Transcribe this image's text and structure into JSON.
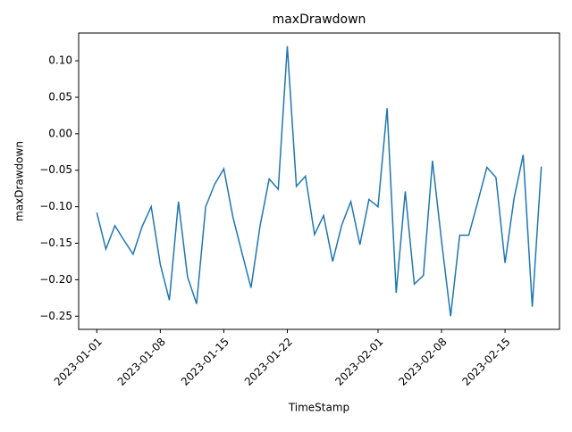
{
  "chart_data": {
    "type": "line",
    "title": "maxDrawdown",
    "x_label": "TimeStamp",
    "y_label": "maxDrawdown",
    "x": [
      "2023-01-01",
      "2023-01-02",
      "2023-01-03",
      "2023-01-04",
      "2023-01-05",
      "2023-01-06",
      "2023-01-07",
      "2023-01-08",
      "2023-01-09",
      "2023-01-10",
      "2023-01-11",
      "2023-01-12",
      "2023-01-13",
      "2023-01-14",
      "2023-01-15",
      "2023-01-16",
      "2023-01-17",
      "2023-01-18",
      "2023-01-19",
      "2023-01-20",
      "2023-01-21",
      "2023-01-22",
      "2023-01-23",
      "2023-01-24",
      "2023-01-25",
      "2023-01-26",
      "2023-01-27",
      "2023-01-28",
      "2023-01-29",
      "2023-01-30",
      "2023-01-31",
      "2023-02-01",
      "2023-02-02",
      "2023-02-03",
      "2023-02-04",
      "2023-02-05",
      "2023-02-06",
      "2023-02-07",
      "2023-02-08",
      "2023-02-09",
      "2023-02-10",
      "2023-02-11",
      "2023-02-12",
      "2023-02-13",
      "2023-02-14",
      "2023-02-15",
      "2023-02-16",
      "2023-02-17",
      "2023-02-18",
      "2023-02-19"
    ],
    "series": [
      {
        "name": "maxDrawdown",
        "color": "#1f77b4",
        "values": [
          -0.108,
          -0.158,
          -0.126,
          -0.146,
          -0.165,
          -0.127,
          -0.1,
          -0.179,
          -0.228,
          -0.093,
          -0.196,
          -0.233,
          -0.1,
          -0.069,
          -0.048,
          -0.114,
          -0.163,
          -0.211,
          -0.126,
          -0.062,
          -0.076,
          0.12,
          -0.072,
          -0.058,
          -0.138,
          -0.112,
          -0.175,
          -0.125,
          -0.093,
          -0.152,
          -0.09,
          -0.1,
          0.035,
          -0.218,
          -0.079,
          -0.206,
          -0.194,
          -0.037,
          -0.147,
          -0.25,
          -0.139,
          -0.139,
          -0.093,
          -0.046,
          -0.06,
          -0.177,
          -0.088,
          -0.029,
          -0.237,
          -0.045
        ]
      }
    ],
    "xlim": [
      "2022-12-30",
      "2023-02-21"
    ],
    "xticks": [
      "2023-01-01",
      "2023-01-08",
      "2023-01-15",
      "2023-01-22",
      "2023-02-01",
      "2023-02-08",
      "2023-02-15"
    ],
    "ylim": [
      -0.268,
      0.138
    ],
    "yticks": [
      {
        "value": -0.25,
        "label": "−0.25"
      },
      {
        "value": -0.2,
        "label": "−0.20"
      },
      {
        "value": -0.15,
        "label": "−0.15"
      },
      {
        "value": -0.1,
        "label": "−0.10"
      },
      {
        "value": -0.05,
        "label": "−0.05"
      },
      {
        "value": 0,
        "label": "0.00"
      },
      {
        "value": 0.05,
        "label": "0.05"
      },
      {
        "value": 0.1,
        "label": "0.10"
      }
    ],
    "grid": false
  }
}
